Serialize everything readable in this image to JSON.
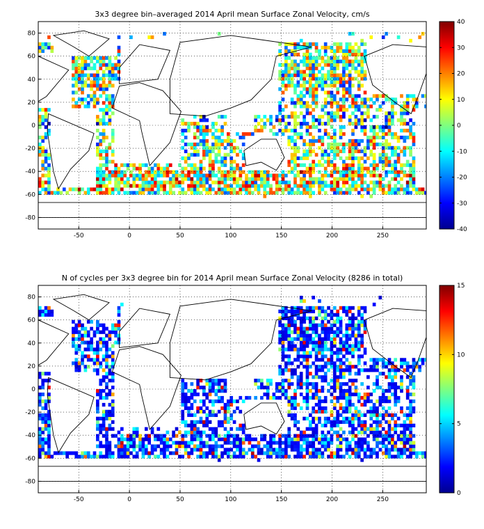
{
  "chart_data": [
    {
      "type": "heatmap",
      "title": "3x3 degree bin–averaged 2014 April mean Surface Zonal Velocity, cm/s",
      "xlim": [
        -90,
        293
      ],
      "ylim": [
        -90,
        90
      ],
      "x_ticks": [
        -50,
        0,
        50,
        100,
        150,
        200,
        250
      ],
      "y_ticks": [
        80,
        60,
        40,
        20,
        0,
        -20,
        -40,
        -60,
        -80
      ],
      "colorbar": {
        "colormap": "jet",
        "range": [
          -40,
          40
        ],
        "ticks": [
          40,
          30,
          20,
          10,
          0,
          -10,
          -20,
          -30,
          -40
        ]
      },
      "grid": true,
      "bin_size_deg": 3
    },
    {
      "type": "heatmap",
      "title": "N of cycles per 3x3 degree bin for 2014 April mean Surface Zonal Velocity (8286 in total)",
      "xlim": [
        -90,
        293
      ],
      "ylim": [
        -90,
        90
      ],
      "x_ticks": [
        -50,
        0,
        50,
        100,
        150,
        200,
        250
      ],
      "y_ticks": [
        80,
        60,
        40,
        20,
        0,
        -20,
        -40,
        -60,
        -80
      ],
      "colorbar": {
        "colormap": "jet",
        "range": [
          0,
          15
        ],
        "ticks": [
          15,
          10,
          5,
          0
        ]
      },
      "grid": true,
      "bin_size_deg": 3
    }
  ]
}
